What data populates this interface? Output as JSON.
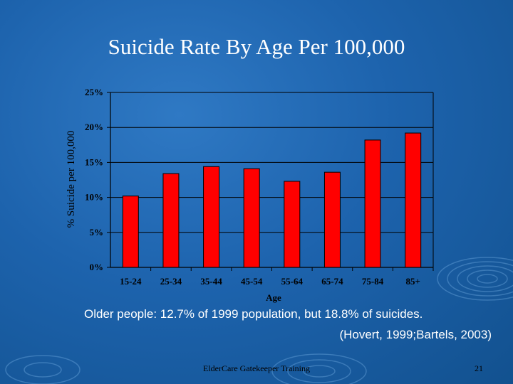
{
  "slide": {
    "title": "Suicide Rate By Age Per 100,000",
    "caption_line1": "Older people: 12.7% of 1999 population, but 18.8% of suicides.",
    "caption_line2": "(Hovert, 1999;Bartels, 2003)",
    "footer": "ElderCare Gatekeeper Training",
    "page_number": "21"
  },
  "colors": {
    "bar": "#ff0000",
    "text": "#ffffff"
  },
  "chart_data": {
    "type": "bar",
    "title": "Suicide Rate By Age Per 100,000",
    "xlabel": "Age",
    "ylabel": "% Suicide per 100,000",
    "categories": [
      "15-24",
      "25-34",
      "35-44",
      "45-54",
      "55-64",
      "65-74",
      "75-84",
      "85+"
    ],
    "values": [
      10.2,
      13.4,
      14.4,
      14.1,
      12.3,
      13.6,
      18.2,
      19.2
    ],
    "ylim": [
      0,
      25
    ],
    "yticks": [
      "0%",
      "5%",
      "10%",
      "15%",
      "20%",
      "25%"
    ],
    "grid": true,
    "legend": "none"
  }
}
